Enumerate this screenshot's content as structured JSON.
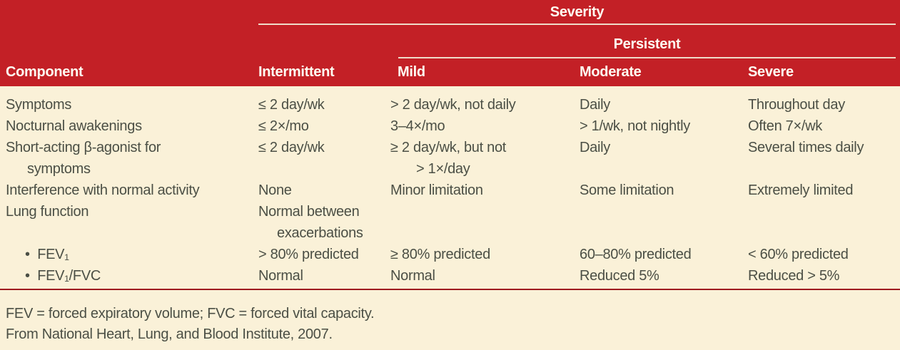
{
  "header": {
    "severity_label": "Severity",
    "persistent_label": "Persistent",
    "columns": [
      "Component",
      "Intermittent",
      "Mild",
      "Moderate",
      "Severe"
    ]
  },
  "table": {
    "rows": [
      [
        "Symptoms",
        "≤ 2 day/wk",
        "> 2 day/wk, not daily",
        "Daily",
        "Throughout day"
      ],
      [
        "Nocturnal awakenings",
        "≤ 2×/mo",
        "3–4×/mo",
        "> 1/wk, not nightly",
        "Often 7×/wk"
      ],
      [
        "Short-acting β-agonist for\nsymptoms",
        "≤ 2 day/wk",
        "≥ 2 day/wk, but not\n> 1×/day",
        "Daily",
        "Several times daily"
      ],
      [
        "Interference with normal activity",
        "None",
        "Minor limitation",
        "Some limitation",
        "Extremely limited"
      ],
      [
        "Lung function",
        "Normal between\nexacerbations",
        "",
        "",
        ""
      ],
      [
        "•  FEV₁",
        "> 80% predicted",
        "≥ 80% predicted",
        "60–80% predicted",
        "< 60% predicted"
      ],
      [
        "•  FEV₁/FVC",
        "Normal",
        "Normal",
        "Reduced 5%",
        "Reduced > 5%"
      ]
    ]
  },
  "footnotes": {
    "line1": "FEV = forced expiratory volume; FVC = forced vital capacity.",
    "line2": "From National Heart, Lung, and Blood Institute, 2007."
  },
  "colors": {
    "header_red": "#C32026",
    "body_cream": "#FAF1D8",
    "rule_dark_red": "#9E1A1F",
    "text_olive": "#4B4F45",
    "header_text": "#FFFCF2",
    "header_line": "#EFDCC9"
  }
}
